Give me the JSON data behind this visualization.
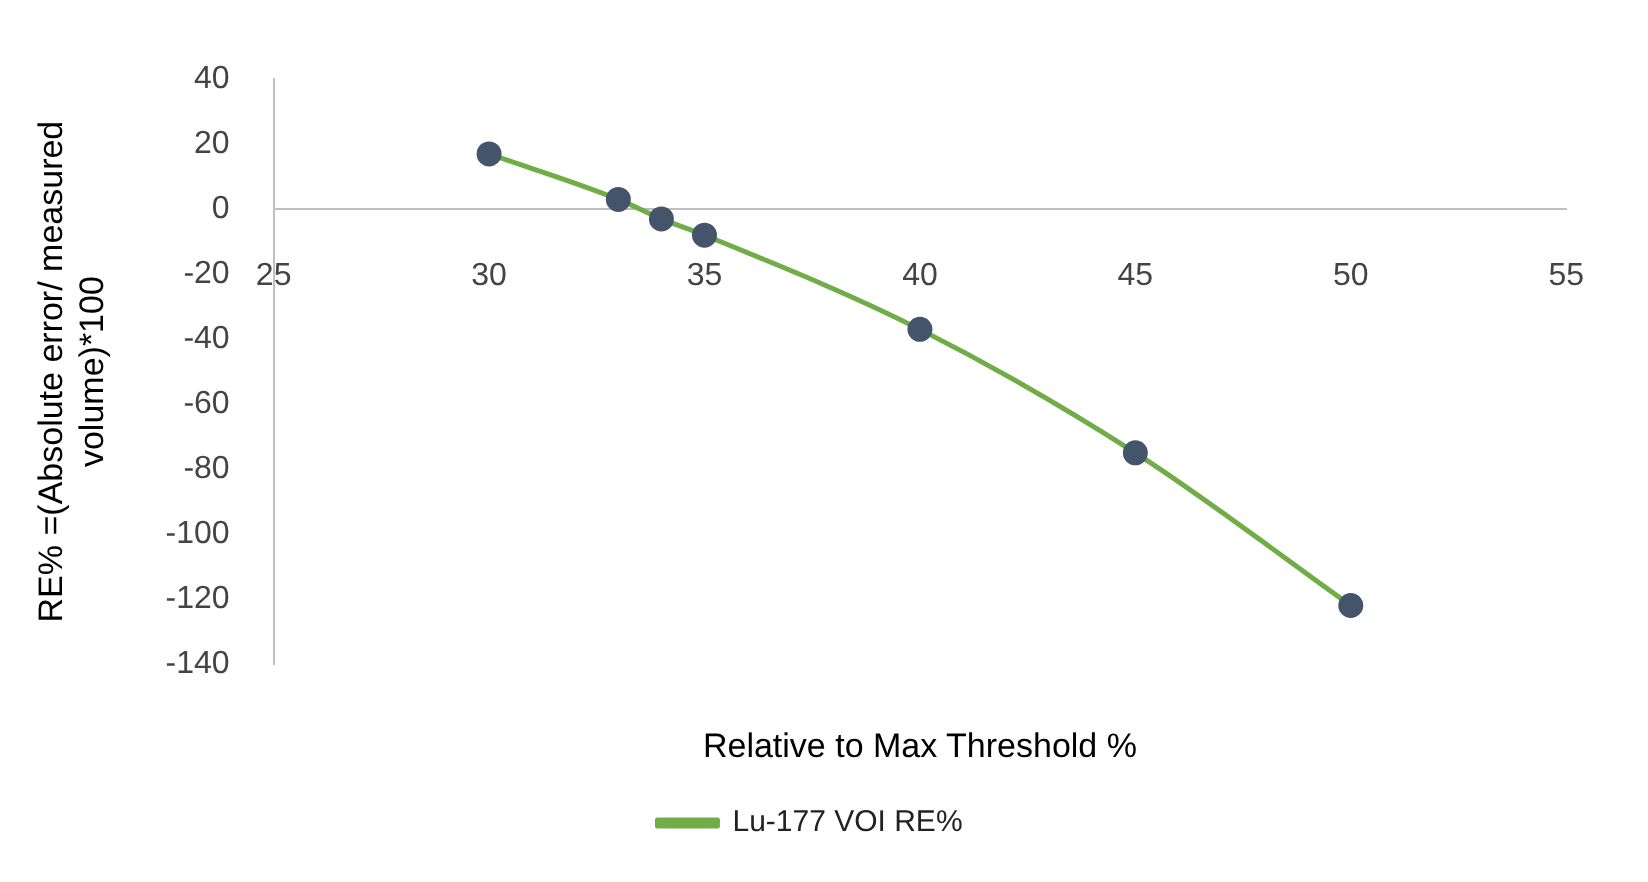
{
  "chart_data": {
    "type": "line",
    "xlabel": "Relative to Max Threshold %",
    "ylabel": "RE% =(Absolute error/ measured volume)*100",
    "x": [
      30,
      33,
      34,
      35,
      40,
      45,
      50
    ],
    "series": [
      {
        "name": "Lu-177 VOI RE%",
        "color": "#70ad47",
        "values": [
          17,
          3,
          -3,
          -8,
          -37,
          -75,
          -122
        ]
      }
    ],
    "xlim": [
      25,
      55
    ],
    "xticks": [
      25,
      30,
      35,
      40,
      45,
      50,
      55
    ],
    "ylim": [
      -140,
      40
    ],
    "yticks": [
      -140,
      -120,
      -100,
      -80,
      -60,
      -40,
      -20,
      0,
      20,
      40
    ],
    "grid": false,
    "legend": "bottom",
    "marker": "circle",
    "line_style": "solid"
  }
}
